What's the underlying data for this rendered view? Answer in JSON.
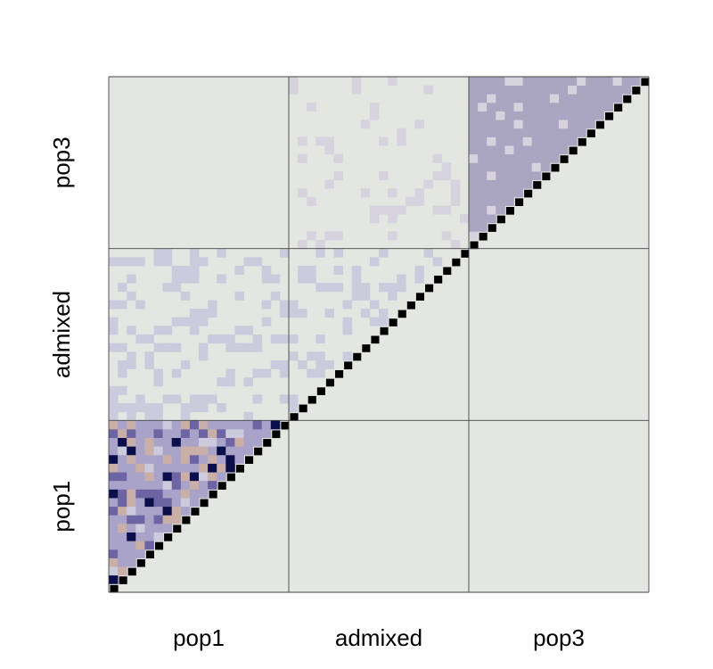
{
  "chart_data": {
    "type": "heatmap",
    "title": "",
    "xlabel": "",
    "ylabel": "",
    "x_categories": [
      "pop1",
      "admixed",
      "pop3"
    ],
    "y_categories": [
      "pop1",
      "admixed",
      "pop3"
    ],
    "layout": "lower-left triangle of a matrix with diagonal; populations ordered pop1, admixed, pop3 along both axes",
    "n_individuals_per_group": 20,
    "diagonal": "self (black)",
    "blocks": [
      {
        "row": "pop1",
        "col": "pop1",
        "description": "high relatedness with mixed levels",
        "dominant_level": "medium"
      },
      {
        "row": "admixed",
        "col": "pop1",
        "description": "low relatedness, scattered",
        "dominant_level": "low"
      },
      {
        "row": "admixed",
        "col": "admixed",
        "description": "low relatedness, scattered",
        "dominant_level": "low"
      },
      {
        "row": "pop3",
        "col": "admixed",
        "description": "very sparse low relatedness",
        "dominant_level": "very-low"
      },
      {
        "row": "pop3",
        "col": "pop3",
        "description": "uniform moderate relatedness",
        "dominant_level": "moderate"
      }
    ],
    "color_levels": {
      "background": "#e3e6e1",
      "diagonal": "#000000",
      "very-low": "#d6d3de",
      "low": "#cccbdd",
      "moderate": "#aaa5c1",
      "medium": "#aaa3c9",
      "tan": "#c9afa8",
      "strong": "#6d64a4",
      "darkest": "#0a0e4a"
    }
  }
}
